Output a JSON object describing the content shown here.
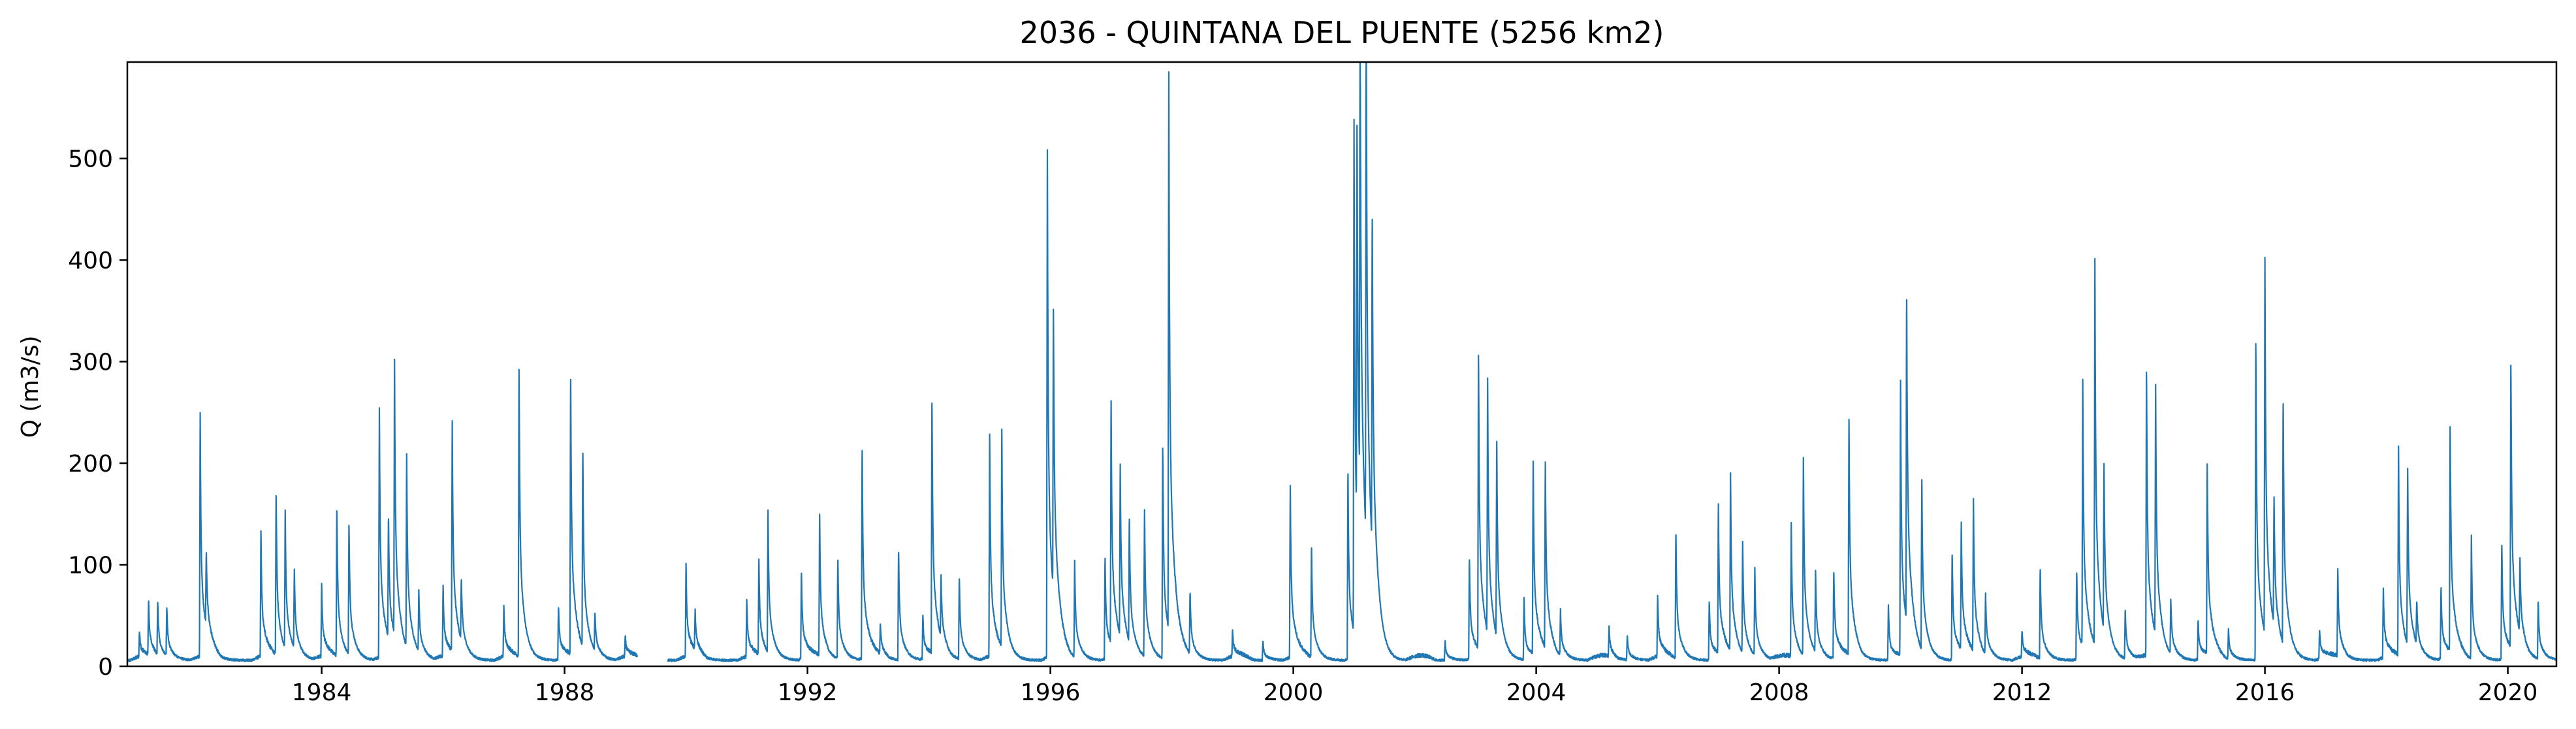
{
  "chart_data": {
    "type": "line",
    "title": "2036 - QUINTANA DEL PUENTE (5256 km2)",
    "xlabel": "",
    "ylabel": "Q (m3/s)",
    "xlim": [
      1980.8,
      2020.8
    ],
    "ylim": [
      0,
      595
    ],
    "xticks": [
      1984,
      1988,
      1992,
      1996,
      2000,
      2004,
      2008,
      2012,
      2016,
      2020
    ],
    "yticks": [
      0,
      100,
      200,
      300,
      400,
      500
    ],
    "grid": false,
    "line_color": "#1f77b4",
    "gaps": [
      [
        1989.2,
        1989.7
      ]
    ],
    "baseflow": 6,
    "series": [
      {
        "name": "",
        "peaks": [
          [
            1981.0,
            25
          ],
          [
            1981.15,
            55
          ],
          [
            1981.3,
            55
          ],
          [
            1981.45,
            50
          ],
          [
            1982.0,
            240
          ],
          [
            1982.1,
            75
          ],
          [
            1983.0,
            125
          ],
          [
            1983.25,
            165
          ],
          [
            1983.4,
            135
          ],
          [
            1983.55,
            80
          ],
          [
            1984.0,
            70
          ],
          [
            1984.25,
            150
          ],
          [
            1984.45,
            135
          ],
          [
            1984.95,
            255
          ],
          [
            1985.1,
            125
          ],
          [
            1985.2,
            270
          ],
          [
            1985.4,
            190
          ],
          [
            1985.6,
            60
          ],
          [
            1986.0,
            70
          ],
          [
            1986.15,
            235
          ],
          [
            1986.3,
            65
          ],
          [
            1987.0,
            50
          ],
          [
            1987.25,
            300
          ],
          [
            1987.9,
            55
          ],
          [
            1988.1,
            290
          ],
          [
            1988.3,
            205
          ],
          [
            1988.5,
            40
          ],
          [
            1989.0,
            20
          ],
          [
            1990.0,
            90
          ],
          [
            1990.15,
            40
          ],
          [
            1991.0,
            55
          ],
          [
            1991.2,
            95
          ],
          [
            1991.35,
            145
          ],
          [
            1991.9,
            90
          ],
          [
            1992.2,
            140
          ],
          [
            1992.5,
            105
          ],
          [
            1992.9,
            220
          ],
          [
            1993.2,
            30
          ],
          [
            1993.5,
            115
          ],
          [
            1993.9,
            45
          ],
          [
            1994.05,
            260
          ],
          [
            1994.2,
            60
          ],
          [
            1994.5,
            85
          ],
          [
            1995.0,
            220
          ],
          [
            1995.2,
            215
          ],
          [
            1995.95,
            520
          ],
          [
            1996.05,
            290
          ],
          [
            1996.4,
            95
          ],
          [
            1996.9,
            105
          ],
          [
            1997.0,
            240
          ],
          [
            1997.15,
            175
          ],
          [
            1997.3,
            130
          ],
          [
            1997.55,
            150
          ],
          [
            1997.85,
            220
          ],
          [
            1997.95,
            570
          ],
          [
            1998.3,
            65
          ],
          [
            1999.0,
            25
          ],
          [
            1999.5,
            20
          ],
          [
            1999.95,
            175
          ],
          [
            2000.3,
            115
          ],
          [
            2000.9,
            195
          ],
          [
            2001.0,
            505
          ],
          [
            2001.05,
            415
          ],
          [
            2001.1,
            500
          ],
          [
            2001.2,
            565
          ],
          [
            2001.3,
            350
          ],
          [
            2002.5,
            20
          ],
          [
            2002.9,
            105
          ],
          [
            2003.05,
            305
          ],
          [
            2003.2,
            250
          ],
          [
            2003.35,
            200
          ],
          [
            2003.8,
            60
          ],
          [
            2003.95,
            195
          ],
          [
            2004.15,
            190
          ],
          [
            2004.4,
            45
          ],
          [
            2005.2,
            30
          ],
          [
            2005.5,
            25
          ],
          [
            2006.0,
            60
          ],
          [
            2006.3,
            130
          ],
          [
            2006.85,
            60
          ],
          [
            2007.0,
            145
          ],
          [
            2007.2,
            175
          ],
          [
            2007.4,
            110
          ],
          [
            2007.6,
            85
          ],
          [
            2008.2,
            130
          ],
          [
            2008.4,
            195
          ],
          [
            2008.6,
            80
          ],
          [
            2008.9,
            90
          ],
          [
            2009.15,
            240
          ],
          [
            2009.8,
            55
          ],
          [
            2010.0,
            270
          ],
          [
            2010.1,
            340
          ],
          [
            2010.35,
            175
          ],
          [
            2010.85,
            110
          ],
          [
            2011.0,
            125
          ],
          [
            2011.2,
            150
          ],
          [
            2011.4,
            60
          ],
          [
            2012.0,
            25
          ],
          [
            2012.3,
            95
          ],
          [
            2012.9,
            90
          ],
          [
            2013.0,
            260
          ],
          [
            2013.2,
            380
          ],
          [
            2013.35,
            170
          ],
          [
            2013.7,
            50
          ],
          [
            2014.05,
            295
          ],
          [
            2014.2,
            245
          ],
          [
            2014.45,
            55
          ],
          [
            2014.9,
            40
          ],
          [
            2015.05,
            195
          ],
          [
            2015.4,
            30
          ],
          [
            2015.85,
            330
          ],
          [
            2016.0,
            370
          ],
          [
            2016.15,
            130
          ],
          [
            2016.3,
            255
          ],
          [
            2016.9,
            30
          ],
          [
            2017.2,
            85
          ],
          [
            2017.95,
            70
          ],
          [
            2018.2,
            205
          ],
          [
            2018.35,
            180
          ],
          [
            2018.5,
            45
          ],
          [
            2018.9,
            75
          ],
          [
            2019.05,
            235
          ],
          [
            2019.4,
            120
          ],
          [
            2019.9,
            120
          ],
          [
            2020.05,
            295
          ],
          [
            2020.2,
            75
          ],
          [
            2020.5,
            60
          ]
        ]
      }
    ]
  }
}
